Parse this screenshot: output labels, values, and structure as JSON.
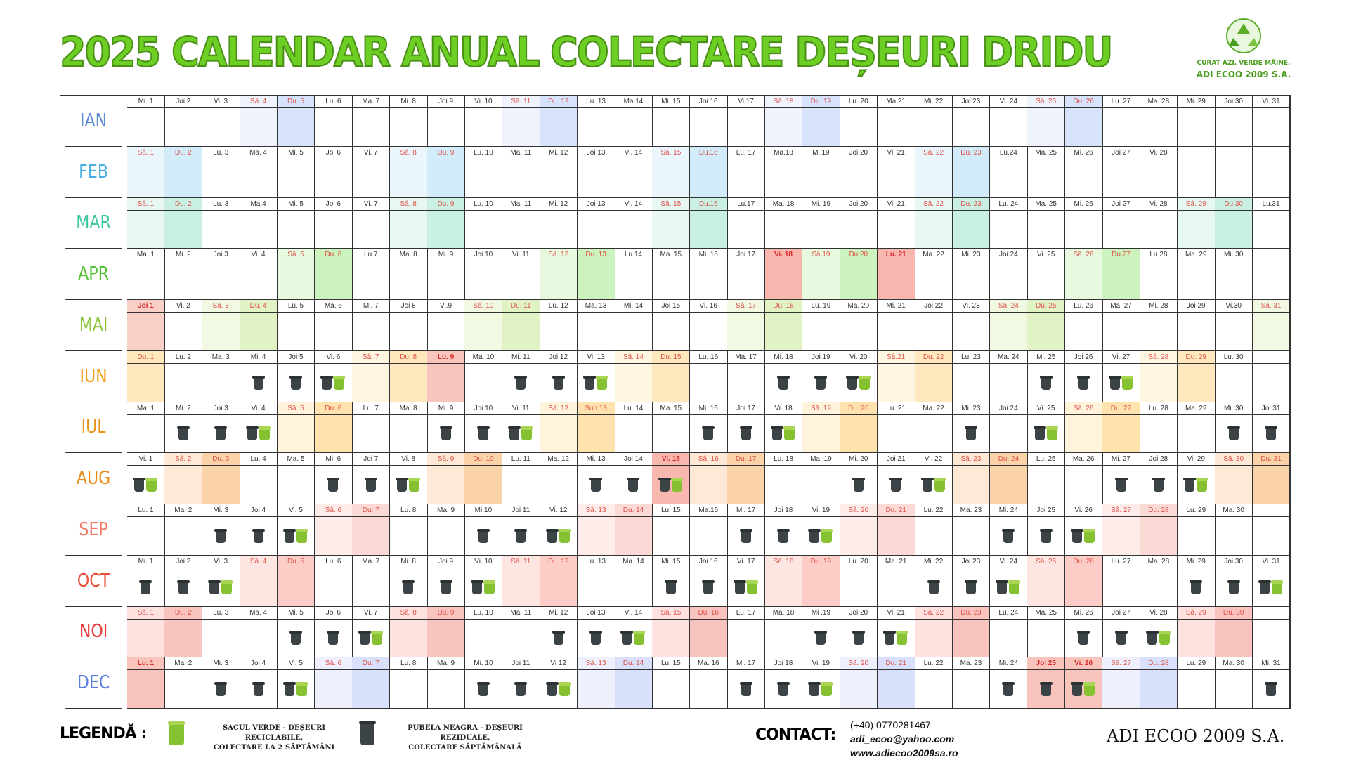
{
  "title": "2025 CALENDAR ANUAL COLECTARE DEȘEURI DRIDU",
  "logo": {
    "ring_text": "CURAT AZI. VERDE MÂINE.",
    "name": "ADI ECOO 2009 S.A."
  },
  "colors": {
    "title": "#6dcf23",
    "weekend_red": "#e53935",
    "weekend_blue": "#4a6cd4"
  },
  "months": [
    {
      "name": "IAN",
      "color": "#5b8ad6",
      "sat": "#eef3fc",
      "sun": "#d6e3fa",
      "hol": "#f9d2cc",
      "days": [
        "Mi. 1",
        "Joi 2",
        "Vi. 3",
        "Sâ. 4",
        "Du. 5",
        "Lu. 6",
        "Ma. 7",
        "Mi. 8",
        "Joi 9",
        "Vi. 10",
        "Sâ. 11",
        "Du. 12",
        "Lu. 13",
        "Ma.14",
        "Mi. 15",
        "Joi 16",
        "Vi.17",
        "Sâ. 18",
        "Du. 19",
        "Lu. 20",
        "Ma.21",
        "Mi. 22",
        "Joi 23",
        "Vi. 24",
        "Sâ. 25",
        "Du. 26",
        "Lu. 27",
        "Ma. 28",
        "Mi. 29",
        "Joi 30",
        "Vi. 31"
      ],
      "marks": []
    },
    {
      "name": "FEB",
      "color": "#4aaee0",
      "sat": "#eaf6fc",
      "sun": "#d2edf9",
      "hol": "#f9d2cc",
      "days": [
        "Sâ. 1",
        "Du. 2",
        "Lu. 3",
        "Ma. 4",
        "Mi. 5",
        "Joi 6",
        "Vi. 7",
        "Sâ. 8",
        "Du. 9",
        "Lu. 10",
        "Ma. 11",
        "Mi. 12",
        "Joi 13",
        "Vi. 14",
        "Sâ. 15",
        "Du.16",
        "Lu. 17",
        "Ma.18",
        "Mi.19",
        "Joi 20",
        "Vi. 21",
        "Sâ. 22",
        "Du. 23",
        "Lu.24",
        "Ma. 25",
        "Mi. 26",
        "Joi 27",
        "Vi. 28"
      ],
      "marks": []
    },
    {
      "name": "MAR",
      "color": "#3ec6a0",
      "sat": "#e6f8f1",
      "sun": "#c9f0e2",
      "hol": "#f9d2cc",
      "days": [
        "Sâ. 1",
        "Du. 2",
        "Lu. 3",
        "Ma.4",
        "Mi. 5",
        "Joi 6",
        "Vi. 7",
        "Sâ. 8",
        "Du. 9",
        "Lu. 10",
        "Ma. 11",
        "Mi. 12",
        "Joi 13",
        "Vi. 14",
        "Sâ. 15",
        "Du.16",
        "Lu.17",
        "Ma. 18",
        "Mi. 19",
        "Joi 20",
        "Vi. 21",
        "Sâ. 22",
        "Du. 23",
        "Lu. 24",
        "Ma. 25",
        "Mi. 26",
        "Joi 27",
        "Vi. 28",
        "Sâ. 29",
        "Du.30",
        "Lu.31"
      ],
      "marks": []
    },
    {
      "name": "APR",
      "color": "#52c234",
      "sat": "#e7f9df",
      "sun": "#ccf2bd",
      "hol": "#f7b7ae",
      "days": [
        "Ma. 1",
        "Mi. 2",
        "Joi 3",
        "Vi. 4",
        "Sâ. 5",
        "Du. 6",
        "Lu.7",
        "Ma. 8",
        "Mi. 9",
        "Joi 10",
        "Vi. 11",
        "Sâ. 12",
        "Du. 13",
        "Lu.14",
        "Ma. 15",
        "Mi. 16",
        "Joi 17",
        "Vi. 18",
        "Sâ.19",
        "Du.20",
        "Lu. 21",
        "Ma. 22",
        "Mi. 23",
        "Joi 24",
        "Vi. 25",
        "Sâ. 26",
        "Du.27",
        "Lu.28",
        "Ma. 29",
        "Mi. 30"
      ],
      "holidays": [
        17,
        20
      ],
      "marks": []
    },
    {
      "name": "MAI",
      "color": "#8dc63f",
      "sat": "#f1f9e3",
      "sun": "#e1f3c4",
      "hol": "#f9d0c8",
      "days": [
        "Joi 1",
        "Vi. 2",
        "Sâ. 3",
        "Du. 4",
        "Lu. 5",
        "Ma. 6",
        "Mi. 7",
        "Joi 8",
        "Vi.9",
        "Sâ. 10",
        "Du. 11",
        "Lu. 12",
        "Ma. 13",
        "Mi. 14",
        "Joi 15",
        "Vi. 16",
        "Sâ. 17",
        "Du. 18",
        "Lu. 19",
        "Ma. 20",
        "Mi. 21",
        "Joi 22",
        "Vi. 23",
        "Sâ. 24",
        "Du. 25",
        "Lu. 26",
        "Ma. 27",
        "Mi. 28",
        "Joi 29",
        "Vi.30",
        "Sâ. 31"
      ],
      "holidays": [
        0
      ],
      "marks": []
    },
    {
      "name": "IUN",
      "color": "#f0a020",
      "sat": "#fff6e2",
      "sun": "#ffe8bd",
      "hol": "#f9c4bc",
      "days": [
        "Du. 1",
        "Lu. 2",
        "Ma. 3",
        "Mi. 4",
        "Joi 5",
        "Vi. 6",
        "Sâ. 7",
        "Du. 8",
        "Lu. 9",
        "Ma. 10",
        "Mi. 11",
        "Joi 12",
        "Vi. 13",
        "Sâ. 14",
        "Du. 15",
        "Lu. 16",
        "Ma. 17",
        "Mi. 18",
        "Joi 19",
        "Vi. 20",
        "Sâ.21",
        "Du. 22",
        "Lu. 23",
        "Ma. 24",
        "Mi. 25",
        "Joi 26",
        "Vi. 27",
        "Sâ. 28",
        "Du. 29",
        "Lu. 30"
      ],
      "holidays": [
        8
      ],
      "marks": [
        "",
        "",
        "",
        "b",
        "b",
        "bg",
        "",
        "",
        "",
        "",
        "b",
        "b",
        "bg",
        "",
        "",
        "",
        "",
        "b",
        "b",
        "bg",
        "",
        "",
        "",
        "",
        "b",
        "b",
        "bg",
        "",
        "",
        ""
      ]
    },
    {
      "name": "IUL",
      "color": "#e8941a",
      "sat": "#fff3dc",
      "sun": "#ffe3ae",
      "hol": "#f9c4bc",
      "days": [
        "Ma. 1",
        "Mi. 2",
        "Joi 3",
        "Vi. 4",
        "Sâ. 5",
        "Du. 6",
        "Lu. 7",
        "Ma. 8",
        "Mi. 9",
        "Joi 10",
        "Vi. 11",
        "Sâ. 12",
        "Sun 13",
        "Lu. 14",
        "Ma. 15",
        "Mi. 16",
        "Joi 17",
        "Vi. 18",
        "Sâ. 19",
        "Du. 20",
        "Lu. 21",
        "Ma. 22",
        "Mi. 23",
        "Joi 24",
        "Vi. 25",
        "Sâ. 26",
        "Du. 27",
        "Lu. 28",
        "Ma. 29",
        "Mi. 30",
        "Joi 31"
      ],
      "marks": [
        "",
        "b",
        "b",
        "bg",
        "",
        "",
        "",
        "",
        "b",
        "b",
        "bg",
        "",
        "",
        "",
        "",
        "b",
        "b",
        "bg",
        "",
        "",
        "",
        "",
        "b",
        "",
        "bg",
        "",
        "",
        "",
        "",
        "b",
        "b"
      ]
    },
    {
      "name": "AUG",
      "color": "#e88a1a",
      "sat": "#fde9d6",
      "sun": "#fbd3a8",
      "hol": "#f7b7ae",
      "days": [
        "Vi. 1",
        "Sâ. 2",
        "Du. 3",
        "Lu. 4",
        "Ma. 5",
        "Mi. 6",
        "Joi 7",
        "Vi. 8",
        "Sâ. 9",
        "Du. 10",
        "Lu. 11",
        "Ma. 12",
        "Mi. 13",
        "Joi 14",
        "Vi. 15",
        "Sâ. 16",
        "Du. 17",
        "Lu. 18",
        "Ma. 19",
        "Mi. 20",
        "Joi 21",
        "Vi. 22",
        "Sâ. 23",
        "Du. 24",
        "Lu. 25",
        "Ma. 26",
        "Mi. 27",
        "Joi 28",
        "Vi. 29",
        "Sâ. 30",
        "Du. 31"
      ],
      "holidays": [
        14
      ],
      "marks": [
        "bg",
        "",
        "",
        "",
        "",
        "b",
        "b",
        "bg",
        "",
        "",
        "",
        "",
        "b",
        "b",
        "bg",
        "",
        "",
        "",
        "",
        "b",
        "b",
        "bg",
        "",
        "",
        "",
        "",
        "b",
        "b",
        "bg",
        "",
        ""
      ]
    },
    {
      "name": "SEP",
      "color": "#f07a6a",
      "sat": "#fdecea",
      "sun": "#fbd9d5",
      "hol": "#f9c4bc",
      "days": [
        "Lu. 1",
        "Ma. 2",
        "Mi. 3",
        "Joi 4",
        "Vi. 5",
        "Sâ. 6",
        "Du. 7",
        "Lu. 8",
        "Ma. 9",
        "Mi.10",
        "Joi 11",
        "Vi. 12",
        "Sâ. 13",
        "Du. 14",
        "Lu. 15",
        "Ma.16",
        "Mi. 17",
        "Joi 18",
        "Vi. 19",
        "Sâ. 20",
        "Du. 21",
        "Lu. 22",
        "Ma. 23",
        "Mi. 24",
        "Joi 25",
        "Vi. 26",
        "Sâ. 27",
        "Du. 28",
        "Lu. 29",
        "Ma. 30"
      ],
      "marks": [
        "",
        "",
        "b",
        "b",
        "bg",
        "",
        "",
        "",
        "",
        "b",
        "b",
        "bg",
        "",
        "",
        "",
        "",
        "b",
        "b",
        "bg",
        "",
        "",
        "",
        "",
        "b",
        "b",
        "bg",
        "",
        "",
        "",
        ""
      ]
    },
    {
      "name": "OCT",
      "color": "#e8503a",
      "sat": "#fde5e1",
      "sun": "#fbcdc6",
      "hol": "#f9c4bc",
      "days": [
        "Mi. 1",
        "Joi 2",
        "Vi. 3",
        "Sâ. 4",
        "Du. 5",
        "Lu. 6",
        "Ma. 7",
        "Mi. 8",
        "Joi 9",
        "Vi. 10",
        "Sâ. 11",
        "Du. 12",
        "Lu. 13",
        "Ma. 14",
        "Mi. 15",
        "Joi 16",
        "Vi. 17",
        "Sâ. 18",
        "Du. 19",
        "Lu. 20",
        "Ma. 21",
        "Mi. 22",
        "Joi 23",
        "Vi. 24",
        "Sâ. 25",
        "Du. 26",
        "Lu. 27",
        "Ma. 28",
        "Mi. 29",
        "Joi 30",
        "Vi. 31"
      ],
      "marks": [
        "b",
        "b",
        "bg",
        "",
        "",
        "",
        "",
        "b",
        "b",
        "bg",
        "",
        "",
        "",
        "",
        "b",
        "b",
        "bg",
        "",
        "",
        "",
        "",
        "b",
        "b",
        "bg",
        "",
        "",
        "",
        "",
        "b",
        "b",
        "bg"
      ]
    },
    {
      "name": "NOI",
      "color": "#e8393a",
      "sat": "#fde2e0",
      "sun": "#f9c3bf",
      "hol": "#f9c4bc",
      "days": [
        "Sâ. 1",
        "Du. 2",
        "Lu. 3",
        "Ma. 4",
        "Mi. 5",
        "Joi 6",
        "Vi. 7",
        "Sâ. 8",
        "Du. 9",
        "Lu. 10",
        "Ma. 11",
        "Mi. 12",
        "Joi 13",
        "Vi. 14",
        "Sâ. 15",
        "Du. 16",
        "Lu. 17",
        "Ma. 18",
        "Mi .19",
        "Joi 20",
        "Vi. 21",
        "Sâ. 22",
        "Du. 23",
        "Lu. 24",
        "Ma. 25",
        "Mi. 26",
        "Joi 27",
        "Vi. 28",
        "Sâ. 29",
        "Du. 30"
      ],
      "marks": [
        "",
        "",
        "",
        "",
        "b",
        "b",
        "bg",
        "",
        "",
        "",
        "",
        "b",
        "b",
        "bg",
        "",
        "",
        "",
        "",
        "b",
        "b",
        "bg",
        "",
        "",
        "",
        "",
        "b",
        "b",
        "bg",
        "",
        ""
      ]
    },
    {
      "name": "DEC",
      "color": "#5b7ee0",
      "sat": "#eef1fd",
      "sun": "#d8e0fb",
      "hol": "#f9c4bc",
      "days": [
        "Lu. 1",
        "Ma. 2",
        "Mi. 3",
        "Joi 4",
        "Vi. 5",
        "Sâ. 6",
        "Du. 7",
        "Lu. 8",
        "Ma. 9",
        "Mi. 10",
        "Joi 11",
        "Vi 12",
        "Sâ. 13",
        "Du. 14",
        "Lu. 15",
        "Ma. 16",
        "Mi. 17",
        "Joi 18",
        "Vi. 19",
        "Sâ. 20",
        "Du. 21",
        "Lu. 22",
        "Ma. 23",
        "Mi. 24",
        "Joi 25",
        "Vi. 26",
        "Sâ. 27",
        "Du. 28",
        "Lu. 29",
        "Ma. 30",
        "Mi. 31"
      ],
      "holidays": [
        0,
        24,
        25
      ],
      "marks": [
        "",
        "",
        "b",
        "b",
        "bg",
        "",
        "",
        "",
        "",
        "b",
        "b",
        "bg",
        "",
        "",
        "",
        "",
        "b",
        "b",
        "bg",
        "",
        "",
        "",
        "",
        "b",
        "b",
        "bg",
        "",
        "",
        "",
        "",
        "b"
      ]
    }
  ],
  "legend": {
    "title": "LEGENDĂ :",
    "green_text_1": "SACUL VERDE - DEȘEURI RECICLABILE,",
    "green_text_2": "COLECTARE LA 2 SĂPTĂMÂNI",
    "black_text_1": "PUBELA NEAGRA - DEȘEURI REZIDUALE,",
    "black_text_2": "COLECTARE SĂPTĂMÂNALĂ"
  },
  "contact": {
    "label": "CONTACT:",
    "phone": "(+40) 0770281467",
    "email": "adi_ecoo@yahoo.com",
    "web": "www.adiecoo2009sa.ro"
  },
  "footer_brand": "ADI ECOO 2009 S.A."
}
